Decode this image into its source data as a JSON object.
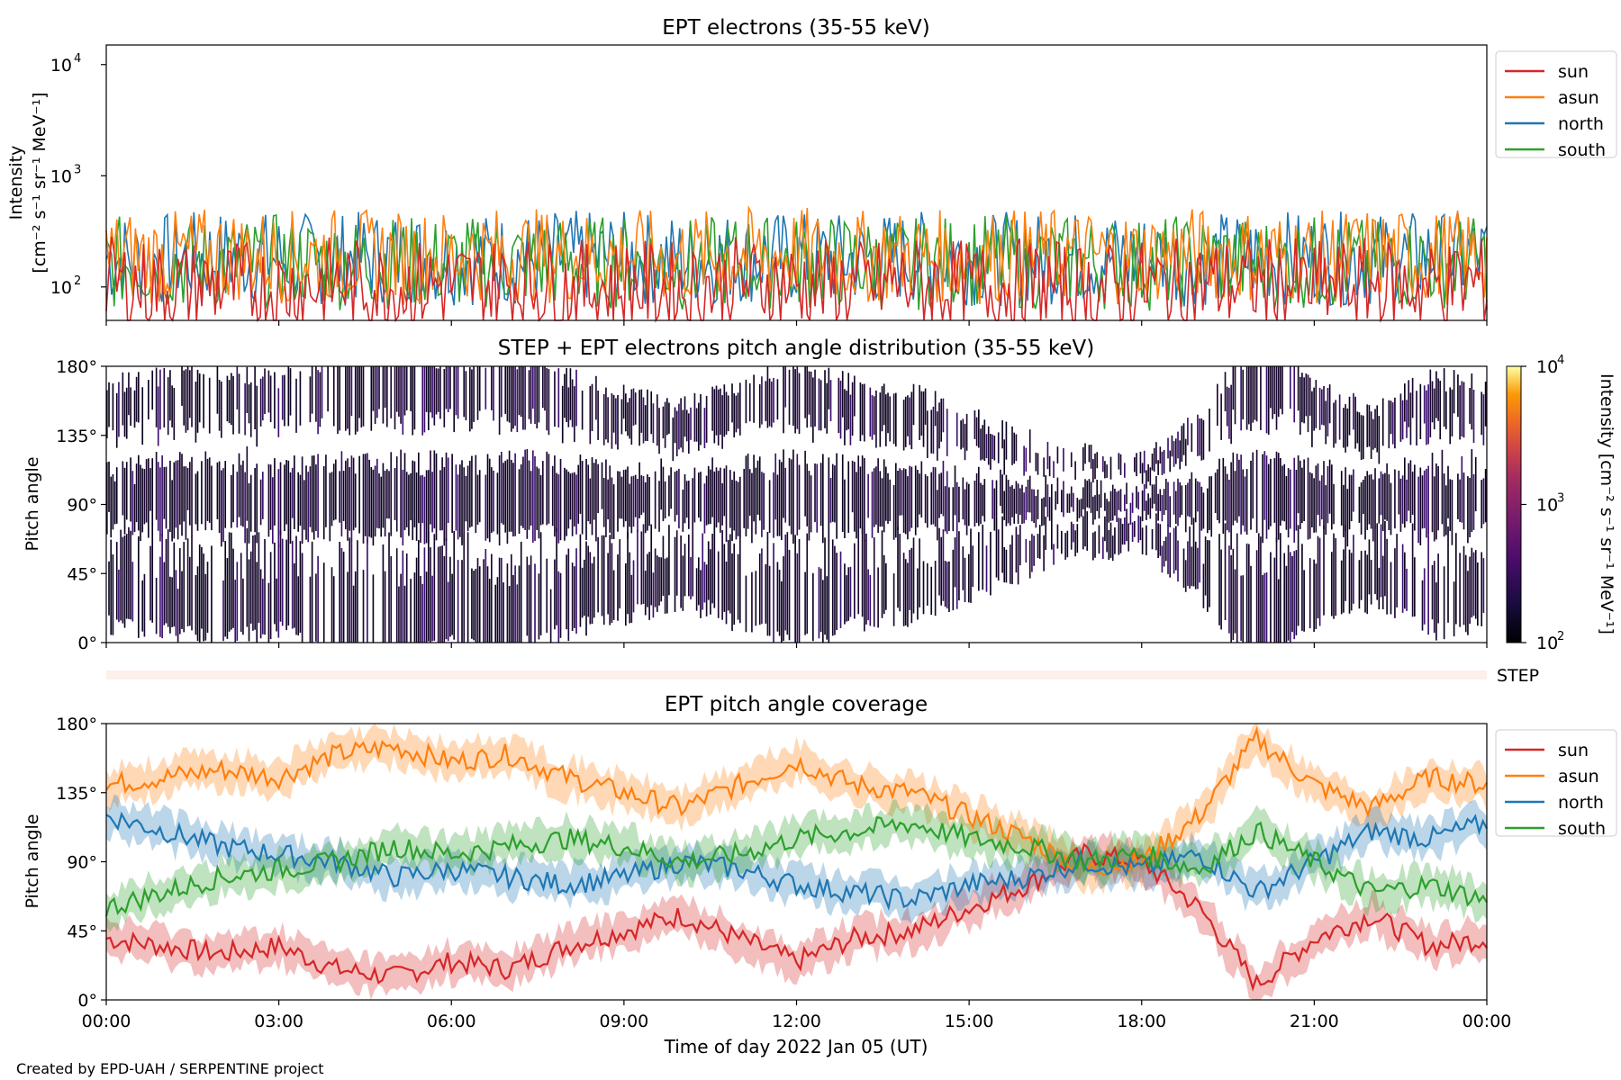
{
  "figure": {
    "footer": "Created by EPD-UAH / SERPENTINE project",
    "xlabel": "Time of day 2022 Jan 05 (UT)",
    "xticks": [
      "00:00",
      "03:00",
      "06:00",
      "09:00",
      "12:00",
      "15:00",
      "18:00",
      "21:00",
      "00:00"
    ],
    "colors": {
      "sun": "#d62728",
      "asun": "#ff7f0e",
      "north": "#1f77b4",
      "south": "#2ca02c"
    }
  },
  "chart_data": [
    {
      "type": "line",
      "title": "EPT electrons (35-55 keV)",
      "ylabel_line1": "Intensity",
      "ylabel_line2": "[cm⁻² s⁻¹ sr⁻¹ MeV⁻¹]",
      "yscale": "log",
      "ylim": [
        50,
        15000
      ],
      "yticks": [
        {
          "base": "10",
          "exp": "2"
        },
        {
          "base": "10",
          "exp": "3"
        },
        {
          "base": "10",
          "exp": "4"
        }
      ],
      "legend_position": "right",
      "x_hours": [
        0,
        1,
        2,
        3,
        4,
        5,
        6,
        7,
        8,
        9,
        10,
        11,
        12,
        13,
        14,
        15,
        16,
        17,
        18,
        19,
        20,
        21,
        22,
        23,
        24
      ],
      "series": [
        {
          "name": "sun",
          "values": [
            120,
            110,
            115,
            105,
            120,
            110,
            115,
            120,
            110,
            115,
            105,
            120,
            115,
            110,
            120,
            110,
            115,
            105,
            110,
            115,
            120,
            110,
            115,
            110,
            120
          ]
        },
        {
          "name": "asun",
          "values": [
            210,
            200,
            220,
            205,
            215,
            200,
            210,
            220,
            205,
            210,
            200,
            215,
            220,
            205,
            210,
            200,
            215,
            210,
            205,
            220,
            210,
            200,
            215,
            205,
            210
          ]
        },
        {
          "name": "north",
          "values": [
            200,
            195,
            205,
            200,
            195,
            205,
            200,
            195,
            205,
            200,
            195,
            205,
            200,
            195,
            205,
            200,
            195,
            205,
            200,
            195,
            205,
            200,
            195,
            205,
            200
          ]
        },
        {
          "name": "south",
          "values": [
            180,
            185,
            175,
            190,
            180,
            185,
            175,
            190,
            180,
            185,
            175,
            190,
            180,
            185,
            175,
            190,
            180,
            185,
            175,
            190,
            180,
            185,
            175,
            190,
            180
          ]
        }
      ]
    },
    {
      "type": "heatmap",
      "title": "STEP + EPT electrons pitch angle distribution (35-55 keV)",
      "ylabel": "Pitch angle",
      "ylim": [
        0,
        180
      ],
      "yticks": [
        "0°",
        "45°",
        "90°",
        "135°",
        "180°"
      ],
      "colorbar_label": "Intensity [cm⁻² s⁻¹ sr⁻¹ MeV⁻¹]",
      "colorbar_range": [
        100,
        10000
      ],
      "colorbar_ticks": [
        {
          "base": "10",
          "exp": "2"
        },
        {
          "base": "10",
          "exp": "3"
        },
        {
          "base": "10",
          "exp": "4"
        }
      ],
      "step_label": "STEP"
    },
    {
      "type": "line",
      "title": "EPT pitch angle coverage",
      "ylabel": "Pitch angle",
      "ylim": [
        0,
        180
      ],
      "yticks": [
        "0°",
        "45°",
        "90°",
        "135°",
        "180°"
      ],
      "legend_position": "right",
      "x_hours": [
        0,
        1,
        2,
        3,
        4,
        5,
        6,
        7,
        8,
        9,
        10,
        11,
        12,
        13,
        14,
        15,
        16,
        17,
        18,
        19,
        20,
        21,
        22,
        23,
        24
      ],
      "series": [
        {
          "name": "sun",
          "values": [
            40,
            35,
            30,
            35,
            20,
            15,
            25,
            20,
            35,
            45,
            55,
            40,
            25,
            40,
            45,
            60,
            75,
            95,
            90,
            60,
            10,
            40,
            55,
            35,
            40
          ]
        },
        {
          "name": "asun",
          "values": [
            140,
            145,
            150,
            145,
            160,
            165,
            155,
            160,
            145,
            135,
            125,
            140,
            155,
            140,
            135,
            120,
            105,
            85,
            90,
            120,
            170,
            140,
            125,
            145,
            140
          ]
        },
        {
          "name": "north",
          "values": [
            120,
            110,
            100,
            95,
            90,
            80,
            85,
            80,
            75,
            80,
            90,
            85,
            75,
            70,
            65,
            75,
            80,
            90,
            85,
            95,
            70,
            90,
            110,
            105,
            115
          ]
        },
        {
          "name": "south",
          "values": [
            60,
            70,
            80,
            85,
            90,
            100,
            95,
            100,
            105,
            100,
            90,
            95,
            105,
            110,
            115,
            105,
            100,
            90,
            95,
            85,
            110,
            90,
            70,
            75,
            65
          ]
        }
      ],
      "band_halfwidth_deg": 11
    }
  ]
}
